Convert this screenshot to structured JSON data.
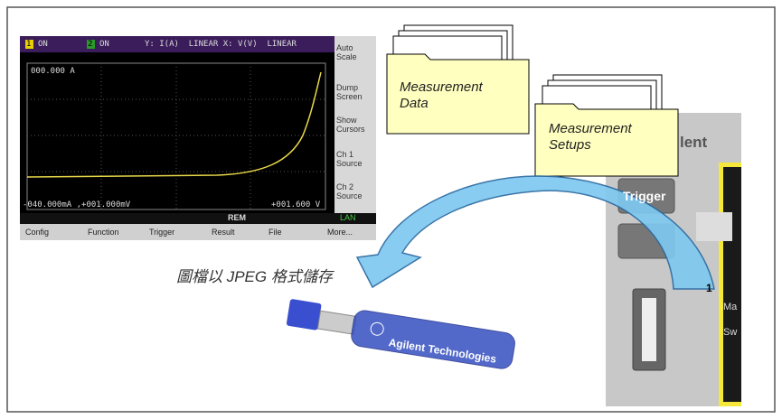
{
  "screen": {
    "header": {
      "ch1": "1",
      "ch1_state": "ON",
      "ch2": "2",
      "ch2_state": "ON",
      "axes": "Y: I(A)  LINEAR X: V(V)  LINEAR"
    },
    "y_readout": "000.000 A",
    "softkeys": [
      "Auto Scale",
      "Dump Screen",
      "Show Cursors",
      "Ch 1 Source",
      "Ch 2 Source"
    ],
    "cursor_readout": "-040.000mA ,+001.000mV",
    "x_readout": "+001.600 V",
    "status": "REM",
    "lan": "LAN",
    "tabs": [
      "Config",
      "Function",
      "Trigger",
      "Result",
      "File",
      "More..."
    ]
  },
  "folders": [
    {
      "label": "Measurement Data"
    },
    {
      "label": "Measurement Setups"
    }
  ],
  "caption": "圖檔以 JPEG 格式儲存",
  "usb_label": "Agilent Technologies",
  "instrument": {
    "brand": "lent",
    "button": "Trigger",
    "channel": "1",
    "labels": [
      "Ma",
      "Sw"
    ]
  }
}
